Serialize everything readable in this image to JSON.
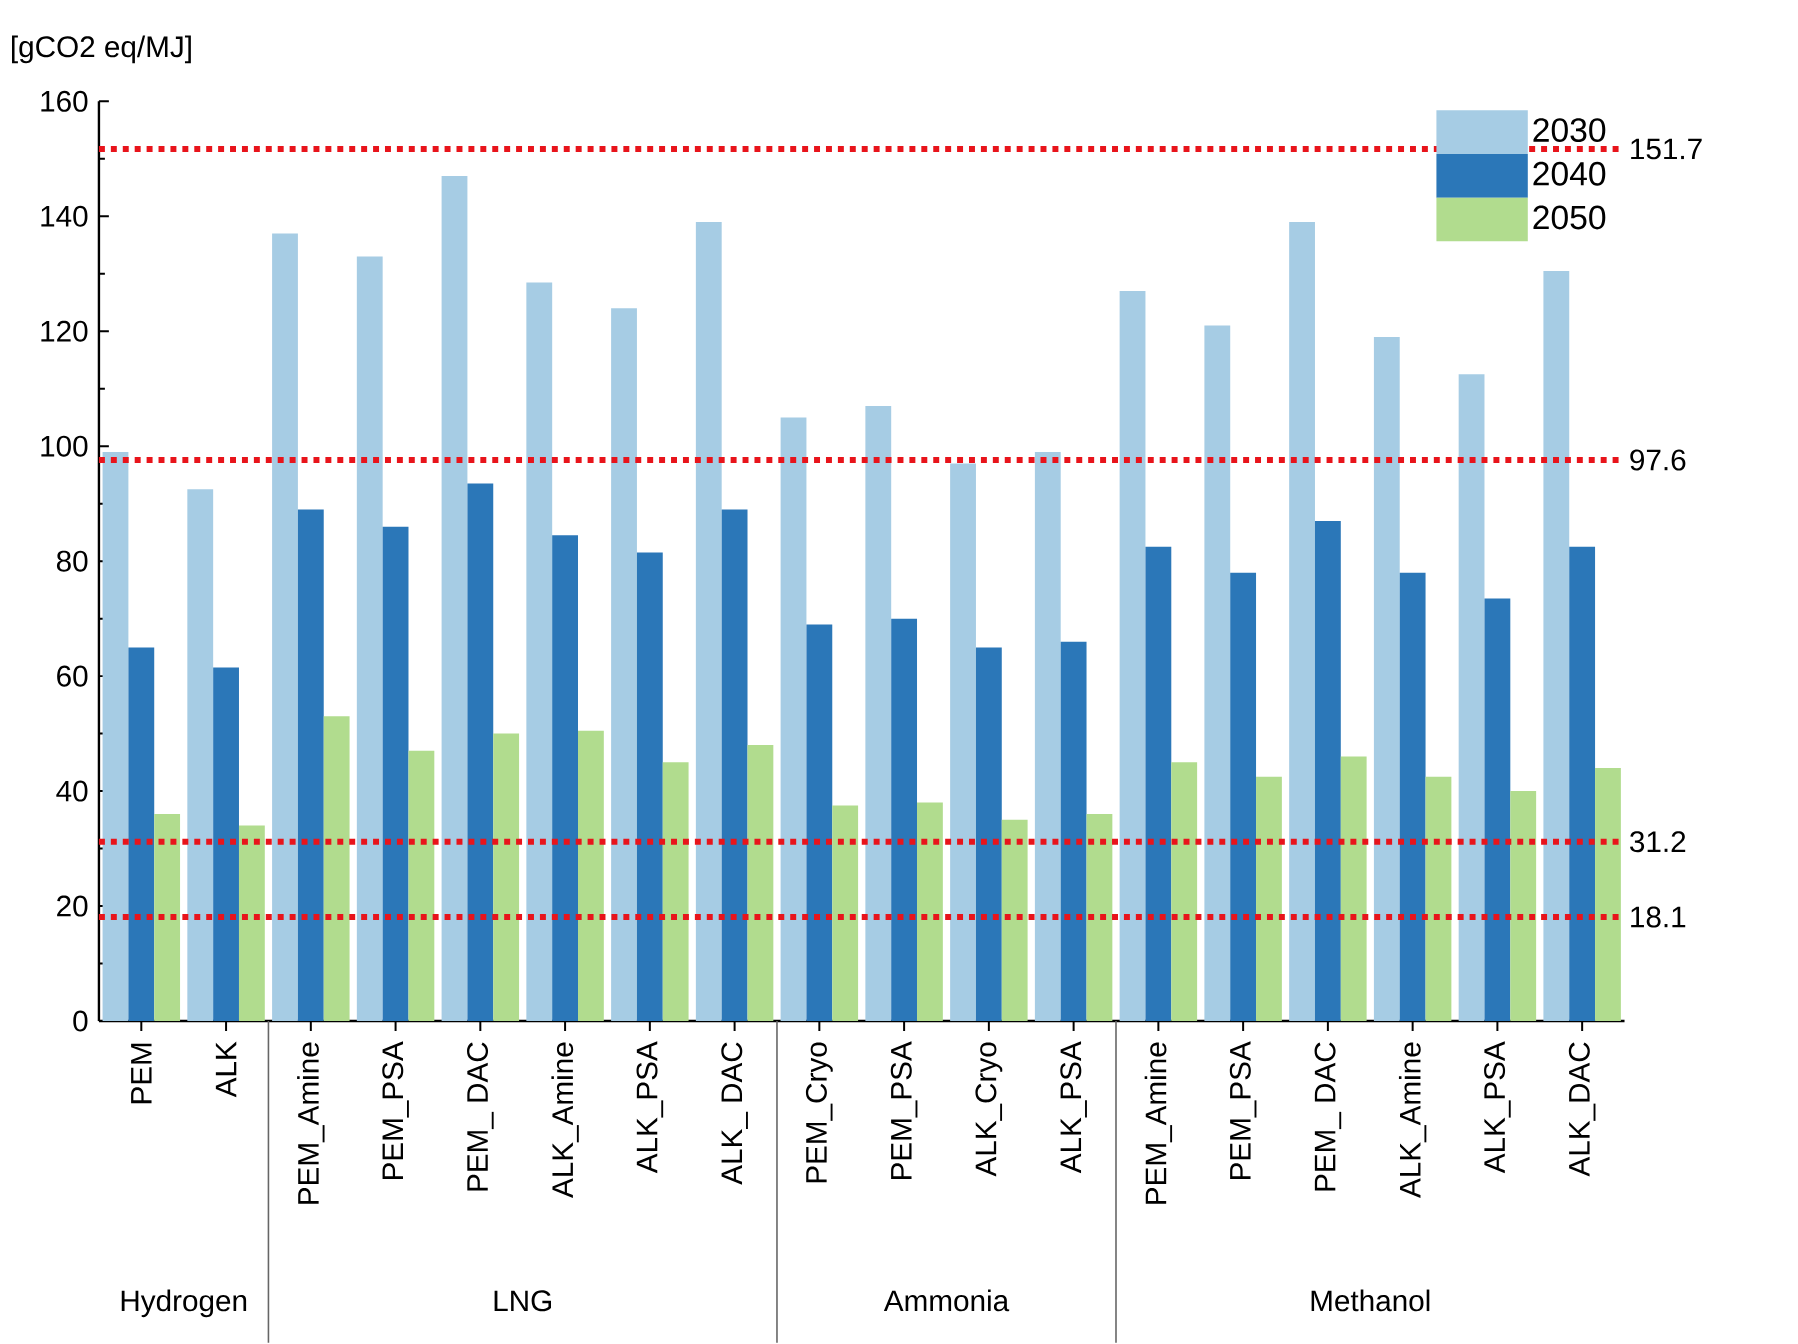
{
  "chart_data": {
    "type": "bar",
    "ylabel": "[gCO2 eq/MJ]",
    "categories": [
      "PEM",
      "ALK",
      "PEM_Amine",
      "PEM_PSA",
      "PEM_ DAC",
      "ALK_Amine",
      "ALK_PSA",
      "ALK_ DAC",
      "PEM_Cryo",
      "PEM_PSA",
      "ALK_Cryo",
      "ALK_PSA",
      "PEM_Amine",
      "PEM_PSA",
      "PEM_ DAC",
      "ALK_Amine",
      "ALK_PSA",
      "ALK_DAC"
    ],
    "series": [
      {
        "name": "2030",
        "color": "#a6cce4",
        "values": [
          99,
          92.5,
          137,
          133,
          147,
          128.5,
          124,
          139,
          105,
          107,
          97,
          99,
          127,
          121,
          139,
          119,
          112.5,
          130.5
        ]
      },
      {
        "name": "2040",
        "color": "#2b77b8",
        "values": [
          65,
          61.5,
          89,
          86,
          93.5,
          84.5,
          81.5,
          89,
          69,
          70,
          65,
          66,
          82.5,
          78,
          87,
          78,
          73.5,
          82.5
        ]
      },
      {
        "name": "2050",
        "color": "#b1dc8e",
        "values": [
          36,
          34,
          53,
          47,
          50,
          50.5,
          45,
          48,
          37.5,
          38,
          35,
          36,
          45,
          42.5,
          46,
          42.5,
          40,
          44
        ]
      }
    ],
    "ylim": [
      0,
      160
    ],
    "yticks": [
      0,
      20,
      40,
      60,
      80,
      100,
      120,
      140,
      160
    ],
    "ref_lines": [
      {
        "axis": "y",
        "value": 97.6,
        "label": "97.6",
        "color": "#e8141b",
        "line_style": "dotted"
      },
      {
        "axis": "y",
        "value": 151.7,
        "label": "151.7",
        "color": "#e8141b",
        "line_style": "dotted"
      },
      {
        "axis": "y",
        "value": 18.1,
        "label": "18.1",
        "color": "#e8141b",
        "line_style": "dotted"
      },
      {
        "axis": "y",
        "value": 31.2,
        "label": "31.2",
        "color": "#e8141b",
        "line_style": "dotted"
      }
    ],
    "annotations": [
      "Hydrogen",
      "LNG",
      "Ammonia",
      "Methanol"
    ],
    "grid": false,
    "legend": "top right"
  }
}
